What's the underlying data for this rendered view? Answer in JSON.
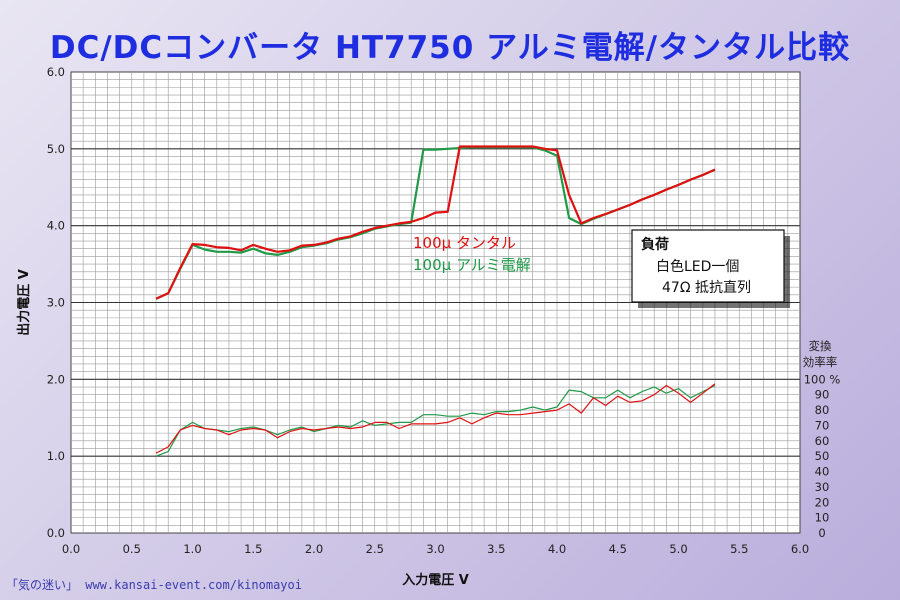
{
  "title": "DC/DCコンバータ HT7750 アルミ電解/タンタル比較",
  "credit": "「気の迷い」 www.kansai-event.com/kinomayoi",
  "colors": {
    "tantalum": "#e01010",
    "aluminum": "#1f9a48"
  },
  "chart_data": {
    "type": "line",
    "xlabel": "入力電圧 V",
    "ylabel": "出力電圧 V",
    "y2label": [
      "変換",
      "効率率"
    ],
    "xlim": [
      0,
      6.0
    ],
    "ylim": [
      0,
      6.0
    ],
    "y2lim": [
      0,
      100
    ],
    "x_ticks": [
      "0.0",
      "0.5",
      "1.0",
      "1.5",
      "2.0",
      "2.5",
      "3.0",
      "3.5",
      "4.0",
      "4.5",
      "5.0",
      "5.5",
      "6.0"
    ],
    "y_ticks": [
      "0.0",
      "1.0",
      "2.0",
      "3.0",
      "4.0",
      "5.0",
      "6.0"
    ],
    "y2_ticks": [
      "0",
      "10",
      "20",
      "30",
      "40",
      "50",
      "60",
      "70",
      "80",
      "90",
      "100 %"
    ],
    "grid": true,
    "legend": [
      "100μ タンタル",
      "100μ アルミ電解"
    ],
    "note": [
      "負荷",
      "白色LED一個",
      "47Ω 抵抗直列"
    ],
    "series": [
      {
        "name": "100μ タンタル",
        "role": "output_voltage",
        "x": [
          0.7,
          0.8,
          0.9,
          1.0,
          1.1,
          1.2,
          1.3,
          1.4,
          1.5,
          1.6,
          1.7,
          1.8,
          1.9,
          2.0,
          2.1,
          2.2,
          2.3,
          2.4,
          2.5,
          2.6,
          2.7,
          2.8,
          2.9,
          3.0,
          3.1,
          3.2,
          3.3,
          3.4,
          3.5,
          3.6,
          3.7,
          3.8,
          3.9,
          4.0,
          4.1,
          4.2,
          4.3,
          4.4,
          4.5,
          4.6,
          4.7,
          4.8,
          4.9,
          5.0,
          5.1,
          5.2,
          5.3
        ],
        "y": [
          3.05,
          3.12,
          3.45,
          3.76,
          3.75,
          3.72,
          3.71,
          3.68,
          3.75,
          3.7,
          3.66,
          3.68,
          3.74,
          3.75,
          3.78,
          3.83,
          3.86,
          3.92,
          3.97,
          4.0,
          4.03,
          4.05,
          4.1,
          4.17,
          4.18,
          5.03,
          5.03,
          5.03,
          5.03,
          5.03,
          5.03,
          5.03,
          5.0,
          4.98,
          4.4,
          4.03,
          4.1,
          4.15,
          4.21,
          4.27,
          4.34,
          4.4,
          4.47,
          4.53,
          4.6,
          4.66,
          4.73
        ]
      },
      {
        "name": "100μ アルミ電解",
        "role": "output_voltage",
        "x": [
          0.7,
          0.8,
          0.9,
          1.0,
          1.1,
          1.2,
          1.3,
          1.4,
          1.5,
          1.6,
          1.7,
          1.8,
          1.9,
          2.0,
          2.1,
          2.2,
          2.3,
          2.4,
          2.5,
          2.6,
          2.7,
          2.8,
          2.9,
          3.0,
          3.1,
          3.2,
          3.3,
          3.4,
          3.5,
          3.6,
          3.7,
          3.8,
          3.9,
          4.0,
          4.1,
          4.2,
          4.3,
          4.4,
          4.5,
          4.6,
          4.7,
          4.8,
          4.9,
          5.0,
          5.1,
          5.2,
          5.3
        ],
        "y": [
          3.05,
          3.12,
          3.44,
          3.75,
          3.69,
          3.66,
          3.66,
          3.65,
          3.7,
          3.64,
          3.62,
          3.66,
          3.72,
          3.74,
          3.77,
          3.82,
          3.85,
          3.9,
          3.96,
          3.99,
          4.02,
          4.04,
          4.99,
          4.99,
          5.0,
          5.01,
          5.02,
          5.02,
          5.02,
          5.02,
          5.02,
          5.02,
          4.98,
          4.91,
          4.1,
          4.02,
          4.09,
          4.15,
          4.21,
          4.27,
          4.34,
          4.4,
          4.47,
          4.53,
          4.6,
          4.66,
          4.73
        ]
      },
      {
        "name": "100μ タンタル",
        "role": "efficiency_percent",
        "x": [
          0.7,
          0.8,
          0.9,
          1.0,
          1.1,
          1.2,
          1.3,
          1.4,
          1.5,
          1.6,
          1.7,
          1.8,
          1.9,
          2.0,
          2.1,
          2.2,
          2.3,
          2.4,
          2.5,
          2.6,
          2.7,
          2.8,
          2.9,
          3.0,
          3.1,
          3.2,
          3.3,
          3.4,
          3.5,
          3.6,
          3.7,
          3.8,
          3.9,
          4.0,
          4.1,
          4.2,
          4.3,
          4.4,
          4.5,
          4.6,
          4.7,
          4.8,
          4.9,
          5.0,
          5.1,
          5.2,
          5.3
        ],
        "y": [
          52,
          56,
          67,
          70,
          68,
          67,
          64,
          67,
          68,
          67,
          62,
          66,
          68,
          67,
          68,
          69,
          68,
          69,
          72,
          72,
          68,
          71,
          71,
          71,
          72,
          75,
          71,
          75,
          78,
          77,
          77,
          78,
          79,
          80,
          84,
          78,
          88,
          83,
          89,
          85,
          86,
          90,
          96,
          91,
          85,
          91,
          97
        ]
      },
      {
        "name": "100μ アルミ電解",
        "role": "efficiency_percent",
        "x": [
          0.7,
          0.8,
          0.9,
          1.0,
          1.1,
          1.2,
          1.3,
          1.4,
          1.5,
          1.6,
          1.7,
          1.8,
          1.9,
          2.0,
          2.1,
          2.2,
          2.3,
          2.4,
          2.5,
          2.6,
          2.7,
          2.8,
          2.9,
          3.0,
          3.1,
          3.2,
          3.3,
          3.4,
          3.5,
          3.6,
          3.7,
          3.8,
          3.9,
          4.0,
          4.1,
          4.2,
          4.3,
          4.4,
          4.5,
          4.6,
          4.7,
          4.8,
          4.9,
          5.0,
          5.1,
          5.2,
          5.3
        ],
        "y": [
          50,
          53,
          67,
          72,
          68,
          67,
          66,
          68,
          69,
          67,
          64,
          67,
          69,
          66,
          68,
          70,
          69,
          73,
          70,
          71,
          72,
          72,
          77,
          77,
          76,
          76,
          78,
          77,
          79,
          79,
          80,
          82,
          80,
          82,
          93,
          92,
          88,
          88,
          93,
          88,
          92,
          95,
          91,
          94,
          88,
          92,
          96
        ]
      }
    ]
  }
}
